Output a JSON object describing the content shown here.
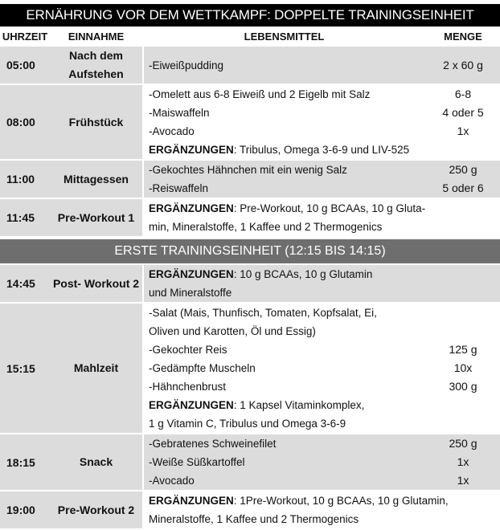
{
  "title": "ERNÄHRUNG VOR DEM WETTKAMPF: DOPPELTE TRAININGSEINHEIT",
  "columns": [
    "UHRZEIT",
    "EINNAHME",
    "LEBENSMITTEL",
    "MENGE"
  ],
  "supplement_label": "ERGÄNZUNGEN",
  "block1": [
    {
      "time": "05:00",
      "intake": [
        "Nach dem",
        "Aufstehen"
      ],
      "shade": "gray",
      "lines": [
        {
          "text": "-Eiweißpudding",
          "qty": "2 x 60 g"
        }
      ]
    },
    {
      "time": "08:00",
      "intake": [
        "Frühstück"
      ],
      "shade": "white",
      "lines": [
        {
          "text": "-Omelett aus 6-8 Eiweiß und 2 Eigelb mit Salz",
          "qty": "6-8"
        },
        {
          "text": "-Maiswaffeln",
          "qty": "4 oder 5"
        },
        {
          "text": "-Avocado",
          "qty": "1x"
        },
        {
          "sup": true,
          "text": ": Tribulus, Omega 3-6-9 und LIV-525",
          "qty": ""
        }
      ]
    },
    {
      "time": "11:00",
      "intake": [
        "Mittagessen"
      ],
      "shade": "gray",
      "lines": [
        {
          "text": "-Gekochtes Hähnchen mit ein wenig Salz",
          "qty": "250 g"
        },
        {
          "text": "-Reiswaffeln",
          "qty": "5 oder 6"
        }
      ]
    },
    {
      "time": "11:45",
      "intake": [
        "Pre-Workout 1"
      ],
      "shade": "white",
      "lines": [
        {
          "sup": true,
          "text": ": Pre-Workout, 10 g BCAAs, 10 g Gluta-",
          "qty": ""
        },
        {
          "text": "min, Mineralstoffe, 1 Kaffee und 2 Thermogenics",
          "qty": ""
        }
      ]
    }
  ],
  "section": "ERSTE TRAININGSEINHEIT (12:15 BIS 14:15)",
  "block2": [
    {
      "time": "14:45",
      "intake": [
        "Post- Workout 2"
      ],
      "shade": "gray",
      "lines": [
        {
          "sup": true,
          "text": ": 10 g BCAAs, 10 g Glutamin",
          "qty": ""
        },
        {
          "text": "und Mineralstoffe",
          "qty": ""
        }
      ]
    },
    {
      "time": "15:15",
      "intake": [
        "Mahlzeit"
      ],
      "shade": "white",
      "lines": [
        {
          "text": "-Salat (Mais, Thunfisch, Tomaten, Kopfsalat, Ei,",
          "qty": ""
        },
        {
          "text": "Oliven und Karotten, Öl und Essig)",
          "qty": ""
        },
        {
          "text": "-Gekochter Reis",
          "qty": "125 g"
        },
        {
          "text": "-Gedämpfte Muscheln",
          "qty": "10x"
        },
        {
          "text": "-Hähnchenbrust",
          "qty": "300 g"
        },
        {
          "sup": true,
          "text": ": 1 Kapsel Vitaminkomplex,",
          "qty": ""
        },
        {
          "text": "1 g Vitamin C, Tribulus und Omega 3-6-9",
          "qty": ""
        }
      ]
    },
    {
      "time": "18:15",
      "intake": [
        "Snack"
      ],
      "shade": "gray",
      "lines": [
        {
          "text": "-Gebratenes Schweinefilet",
          "qty": "250 g"
        },
        {
          "text": "-Weiße Süßkartoffel",
          "qty": "1x"
        },
        {
          "text": "-Avocado",
          "qty": "1x"
        }
      ]
    },
    {
      "time": "19:00",
      "intake": [
        "Pre-Workout 2"
      ],
      "shade": "white",
      "lines": [
        {
          "sup": true,
          "text": ": 1Pre-Workout, 10 g BCAAs, 10 g Glutamin,",
          "qty": ""
        },
        {
          "text": "Mineralstoffe, 1 Kaffee und 2 Thermogenics",
          "qty": ""
        }
      ]
    }
  ]
}
